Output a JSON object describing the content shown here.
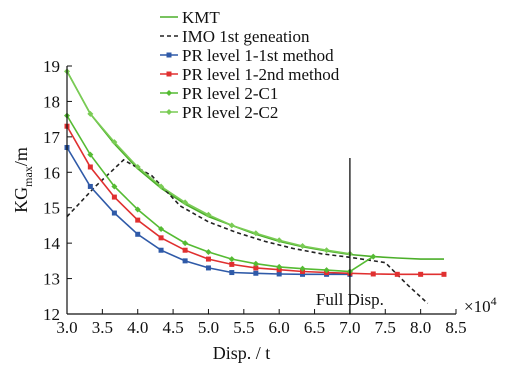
{
  "chart_data": {
    "type": "line",
    "xlabel": "Disp. / t",
    "ylabel_main": "KG",
    "ylabel_sub": "max",
    "ylabel_unit": "/m",
    "x_multiplier": "×10",
    "x_multiplier_exp": "4",
    "xlim": [
      3.0,
      8.5
    ],
    "ylim": [
      12,
      19
    ],
    "xticks": [
      "3.0",
      "3.5",
      "4.0",
      "4.5",
      "5.0",
      "5.5",
      "6.0",
      "6.5",
      "7.0",
      "7.5",
      "8.0",
      "8.5"
    ],
    "yticks": [
      "12",
      "13",
      "14",
      "15",
      "16",
      "17",
      "18",
      "19"
    ],
    "legend_position": "top-left",
    "annotation": {
      "text": "Full Disp.",
      "x": 7.0
    },
    "series": [
      {
        "name": "KMT",
        "color": "#4caf2a",
        "dash": "",
        "marker": "none",
        "x": [
          3.0,
          3.33,
          3.67,
          4.0,
          4.33,
          4.67,
          5.0,
          5.33,
          5.67,
          6.0,
          6.33,
          6.67,
          7.0,
          7.33,
          7.67,
          8.0,
          8.33
        ],
        "y": [
          18.85,
          17.65,
          16.8,
          16.1,
          15.55,
          15.1,
          14.75,
          14.5,
          14.25,
          14.05,
          13.9,
          13.78,
          13.68,
          13.62,
          13.58,
          13.55,
          13.55
        ]
      },
      {
        "name": "IMO 1st geneation",
        "color": "#222222",
        "dash": "4,3",
        "marker": "none",
        "x": [
          3.0,
          3.4,
          3.8,
          4.2,
          4.6,
          5.0,
          5.4,
          5.8,
          6.2,
          6.6,
          7.0,
          7.5,
          7.8,
          8.1
        ],
        "y": [
          14.75,
          15.6,
          16.35,
          15.9,
          15.05,
          14.6,
          14.3,
          14.05,
          13.85,
          13.7,
          13.6,
          13.45,
          12.85,
          12.3
        ]
      },
      {
        "name": "PR level 1-1st method",
        "color": "#2f5aa8",
        "dash": "",
        "marker": "square",
        "x": [
          3.0,
          3.33,
          3.67,
          4.0,
          4.33,
          4.67,
          5.0,
          5.33,
          5.67,
          6.0,
          6.33,
          6.67,
          7.0
        ],
        "y": [
          16.7,
          15.6,
          14.85,
          14.25,
          13.8,
          13.5,
          13.3,
          13.17,
          13.15,
          13.13,
          13.12,
          13.12,
          13.12
        ]
      },
      {
        "name": "PR level 1-2nd method",
        "color": "#e03030",
        "dash": "",
        "marker": "square",
        "x": [
          3.0,
          3.33,
          3.67,
          4.0,
          4.33,
          4.67,
          5.0,
          5.33,
          5.67,
          6.0,
          6.33,
          6.67,
          7.0,
          7.33,
          7.67,
          8.0,
          8.33
        ],
        "y": [
          17.3,
          16.15,
          15.3,
          14.65,
          14.15,
          13.8,
          13.55,
          13.4,
          13.3,
          13.25,
          13.2,
          13.17,
          13.15,
          13.13,
          13.12,
          13.12,
          13.12
        ]
      },
      {
        "name": "PR level 2-C1",
        "color": "#55bb33",
        "dash": "",
        "marker": "diamond",
        "x": [
          3.0,
          3.33,
          3.67,
          4.0,
          4.33,
          4.67,
          5.0,
          5.33,
          5.67,
          6.0,
          6.33,
          6.67,
          7.0,
          7.33
        ],
        "y": [
          17.6,
          16.5,
          15.6,
          14.95,
          14.4,
          14.0,
          13.75,
          13.55,
          13.42,
          13.33,
          13.28,
          13.24,
          13.2,
          13.62
        ]
      },
      {
        "name": "PR level 2-C2",
        "color": "#7acc55",
        "dash": "",
        "marker": "diamond",
        "x": [
          3.0,
          3.33,
          3.67,
          4.0,
          4.33,
          4.67,
          5.0,
          5.33,
          5.67,
          6.0,
          6.33,
          6.67,
          7.0
        ],
        "y": [
          18.85,
          17.65,
          16.85,
          16.15,
          15.6,
          15.15,
          14.8,
          14.5,
          14.28,
          14.08,
          13.92,
          13.8,
          13.7
        ]
      }
    ]
  }
}
